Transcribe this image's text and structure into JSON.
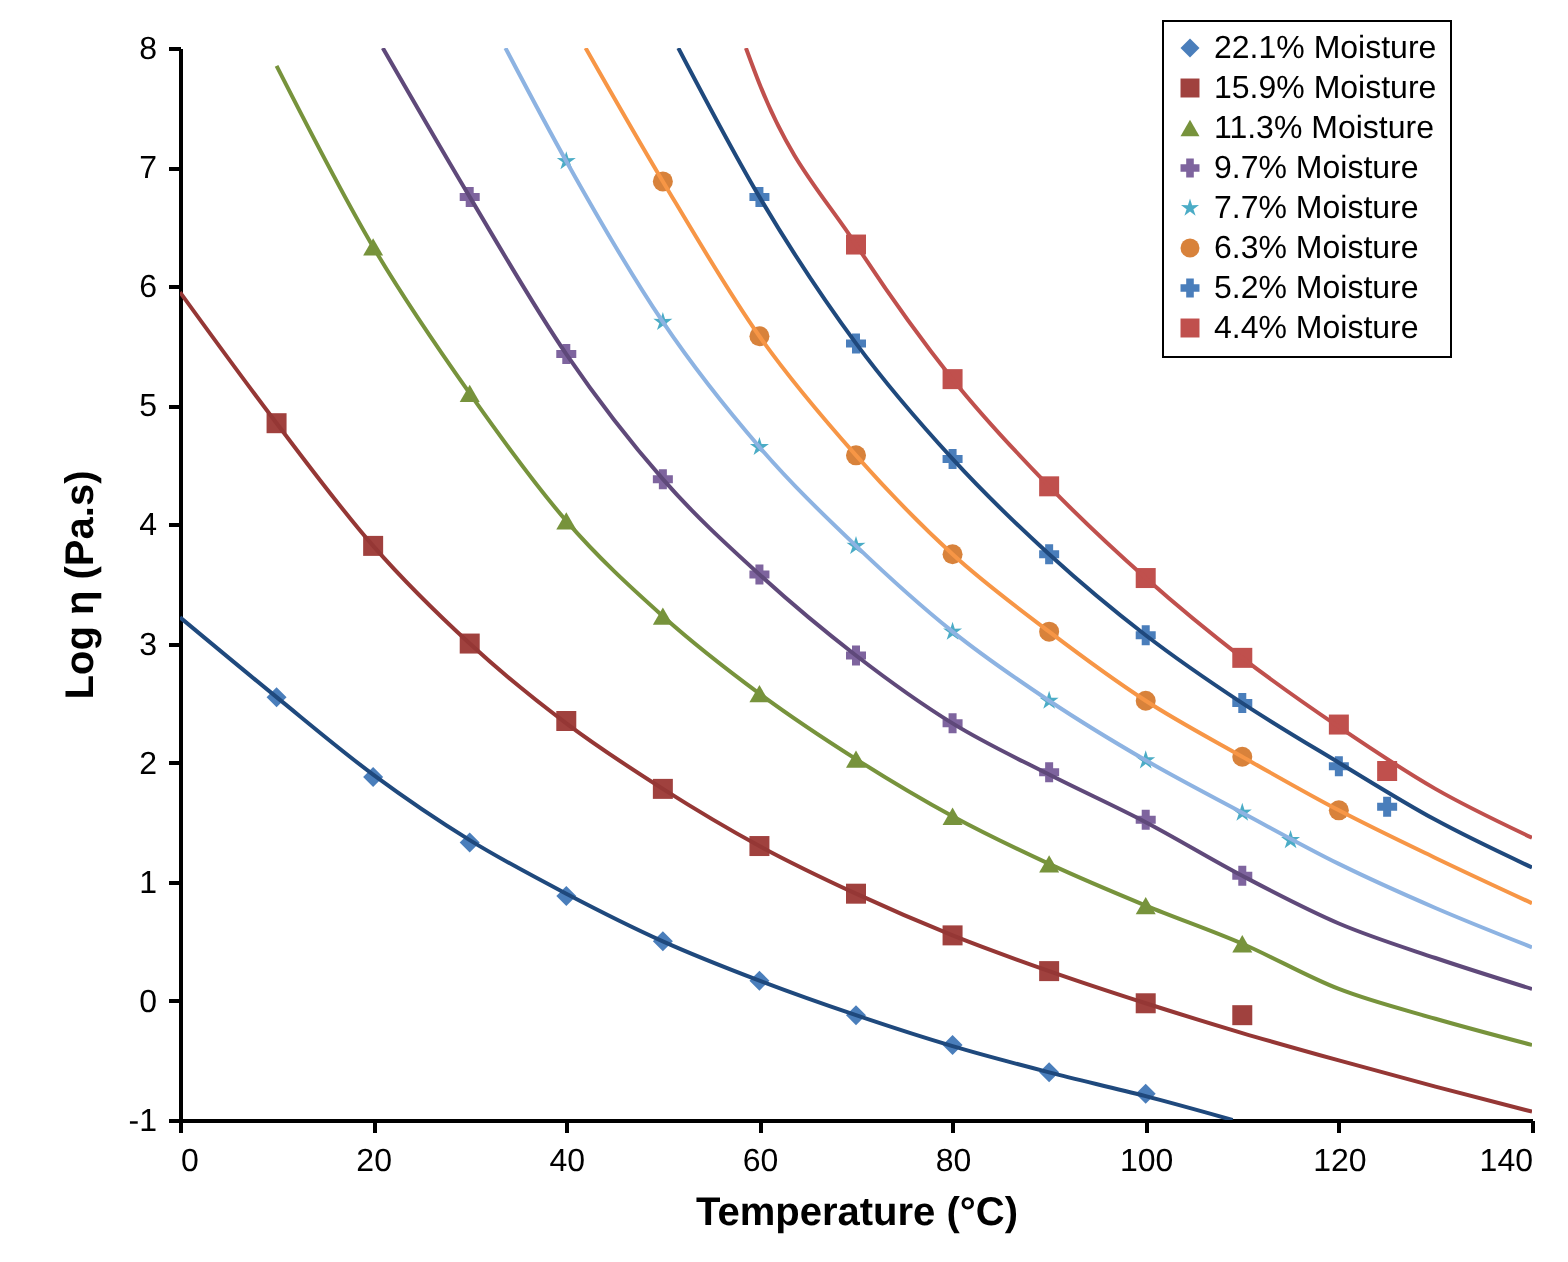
{
  "chart_data": {
    "type": "scatter",
    "xlabel": "Temperature (°C)",
    "ylabel": "Log η (Pa.s)",
    "xlim": [
      0,
      140
    ],
    "xticks": [
      0,
      20,
      40,
      60,
      80,
      100,
      120,
      140
    ],
    "ylim": [
      -1,
      8
    ],
    "yticks": [
      -1,
      0,
      1,
      2,
      3,
      4,
      5,
      6,
      7,
      8
    ],
    "grid": false,
    "legend": "top right",
    "series": [
      {
        "type": "line",
        "color": "#1f497d",
        "x": [
          0,
          10,
          20,
          30,
          40,
          50,
          60,
          70,
          80,
          90,
          100,
          109
        ],
        "values": [
          3.22,
          2.55,
          1.9,
          1.35,
          0.9,
          0.5,
          0.17,
          -0.12,
          -0.38,
          -0.6,
          -0.8,
          -1
        ]
      },
      {
        "type": "line",
        "color": "#953735",
        "x": [
          0,
          10,
          20,
          30,
          40,
          50,
          60,
          70,
          80,
          90,
          100,
          110,
          120,
          130,
          140
        ],
        "values": [
          5.95,
          4.85,
          3.82,
          3.0,
          2.33,
          1.78,
          1.3,
          0.9,
          0.55,
          0.25,
          -0.02,
          -0.27,
          -0.5,
          -0.72,
          -0.93
        ]
      },
      {
        "type": "line",
        "color": "#77933c",
        "x": [
          10,
          20,
          30,
          40,
          50,
          60,
          70,
          80,
          90,
          100,
          110,
          120,
          130,
          140
        ],
        "values": [
          7.85,
          6.33,
          5.1,
          4.03,
          3.23,
          2.58,
          2.03,
          1.55,
          1.15,
          0.8,
          0.48,
          0.1,
          -0.15,
          -0.37
        ]
      },
      {
        "type": "line",
        "color": "#5f497a",
        "x": [
          21,
          30,
          40,
          50,
          60,
          70,
          80,
          90,
          100,
          110,
          120,
          130,
          140
        ],
        "values": [
          8,
          6.75,
          5.43,
          4.38,
          3.58,
          2.9,
          2.33,
          1.9,
          1.5,
          1.05,
          0.65,
          0.36,
          0.1
        ]
      },
      {
        "type": "line",
        "color": "#8db3e2",
        "x": [
          33.7,
          40,
          50,
          60,
          70,
          80,
          90,
          100,
          110,
          120,
          130,
          140
        ],
        "values": [
          8,
          7.05,
          5.7,
          4.65,
          3.82,
          3.1,
          2.52,
          2.02,
          1.58,
          1.15,
          0.78,
          0.45
        ]
      },
      {
        "type": "line",
        "color": "#f79646",
        "x": [
          42,
          50,
          60,
          70,
          80,
          90,
          100,
          110,
          120,
          130,
          140
        ],
        "values": [
          8,
          6.88,
          5.58,
          4.58,
          3.75,
          3.1,
          2.52,
          2.05,
          1.6,
          1.2,
          0.82
        ]
      },
      {
        "type": "line",
        "color": "#1f497d",
        "x": [
          51.6,
          60,
          70,
          80,
          90,
          100,
          110,
          120,
          130,
          140
        ],
        "values": [
          8,
          6.75,
          5.52,
          4.55,
          3.75,
          3.07,
          2.5,
          2.0,
          1.52,
          1.12
        ]
      },
      {
        "type": "line",
        "color": "#c0504d",
        "x": [
          58.6,
          60,
          70,
          80,
          90,
          100,
          110,
          120,
          130,
          140
        ],
        "values": [
          8,
          7.7,
          6.35,
          5.22,
          4.32,
          3.55,
          2.88,
          2.3,
          1.78,
          1.37
        ]
      },
      {
        "name": "22.1% Moisture",
        "color": "#4a7ebb",
        "marker": "diamond",
        "x": [
          10,
          20,
          30,
          40,
          50,
          60,
          70,
          80,
          90,
          100
        ],
        "values": [
          2.55,
          1.88,
          1.33,
          0.88,
          0.5,
          0.17,
          -0.12,
          -0.37,
          -0.6,
          -0.78
        ]
      },
      {
        "name": "15.9% Moisture",
        "color": "#a0413e",
        "marker": "square",
        "x": [
          10,
          20,
          30,
          40,
          50,
          60,
          70,
          80,
          90,
          100,
          110
        ],
        "values": [
          4.85,
          3.82,
          3.0,
          2.35,
          1.78,
          1.3,
          0.9,
          0.55,
          0.25,
          -0.02,
          -0.12
        ]
      },
      {
        "name": "11.3% Moisture",
        "color": "#77933c",
        "marker": "triangle",
        "x": [
          20,
          30,
          40,
          50,
          60,
          70,
          80,
          90,
          100,
          110
        ],
        "values": [
          6.33,
          5.1,
          4.03,
          3.23,
          2.58,
          2.03,
          1.55,
          1.15,
          0.8,
          0.48
        ]
      },
      {
        "name": "9.7% Moisture",
        "color": "#7e649e",
        "marker": "cross",
        "x": [
          30,
          40,
          50,
          60,
          70,
          80,
          90,
          100,
          110
        ],
        "values": [
          6.75,
          5.43,
          4.38,
          3.58,
          2.9,
          2.33,
          1.92,
          1.52,
          1.05
        ]
      },
      {
        "name": "7.7% Moisture",
        "color": "#4bacc6",
        "marker": "star",
        "x": [
          40,
          50,
          60,
          70,
          80,
          90,
          100,
          110,
          115
        ],
        "values": [
          7.05,
          5.7,
          4.65,
          3.82,
          3.1,
          2.52,
          2.02,
          1.58,
          1.35
        ]
      },
      {
        "name": "6.3% Moisture",
        "color": "#d8823b",
        "marker": "circle",
        "x": [
          50,
          60,
          70,
          80,
          90,
          100,
          110,
          120
        ],
        "values": [
          6.88,
          5.58,
          4.58,
          3.75,
          3.1,
          2.52,
          2.05,
          1.6
        ]
      },
      {
        "name": "5.2% Moisture",
        "color": "#4a7ebb",
        "marker": "cross",
        "x": [
          60,
          70,
          80,
          90,
          100,
          110,
          120,
          125
        ],
        "values": [
          6.75,
          5.52,
          4.55,
          3.75,
          3.07,
          2.5,
          1.97,
          1.63
        ]
      },
      {
        "name": "4.4% Moisture",
        "color": "#c0504d",
        "marker": "square",
        "x": [
          70,
          80,
          90,
          100,
          110,
          120,
          125
        ],
        "values": [
          6.35,
          5.22,
          4.32,
          3.55,
          2.88,
          2.32,
          1.93
        ]
      }
    ]
  }
}
